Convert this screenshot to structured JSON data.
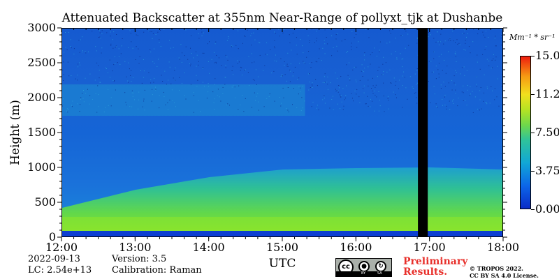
{
  "chart_data": {
    "type": "heatmap",
    "title": "Attenuated Backscatter at 355nm Near-Range of pollyxt_tjk at Dushanbe",
    "xlabel": "UTC",
    "ylabel": "Height (m)",
    "x_range": [
      "12:00",
      "18:00"
    ],
    "x_ticks": [
      "12:00",
      "13:00",
      "14:00",
      "15:00",
      "16:00",
      "17:00",
      "18:00"
    ],
    "ylim": [
      0,
      3000
    ],
    "y_ticks": [
      "0",
      "500",
      "1000",
      "1500",
      "2000",
      "2500",
      "3000"
    ],
    "colorbar": {
      "unit": "Mm⁻¹ * sr⁻¹",
      "range": [
        0.0,
        15.0
      ],
      "tick_labels": [
        "0.00",
        "3.75",
        "7.50",
        "11.25",
        "15.00"
      ],
      "colormap": "jet"
    },
    "missing_data_gap": [
      "16:50",
      "16:58"
    ],
    "boundary_layer": {
      "note_times": [
        "12:00",
        "13:00",
        "14:00",
        "15:00",
        "16:00",
        "17:00",
        "18:00"
      ],
      "aerosol_top_height_m": [
        430,
        690,
        870,
        980,
        1000,
        1010,
        980
      ]
    }
  },
  "meta": {
    "date": "2022-09-13",
    "lc": "LC: 2.54e+13",
    "version": "Version: 3.5",
    "calibration": "Calibration: Raman"
  },
  "license": {
    "badge_text": "cc",
    "by": "BY",
    "sa": "SA",
    "preliminary_line1": "Preliminary",
    "preliminary_line2": "Results.",
    "copyright_line1": "© TROPOS 2022.",
    "copyright_line2": "CC BY SA 4.0 License."
  },
  "colors": {
    "low": "#0c4fd6",
    "mid": "#1fb9c3",
    "high": "#8ee62a",
    "gap": "#000000",
    "preliminary": "#e8302b"
  }
}
